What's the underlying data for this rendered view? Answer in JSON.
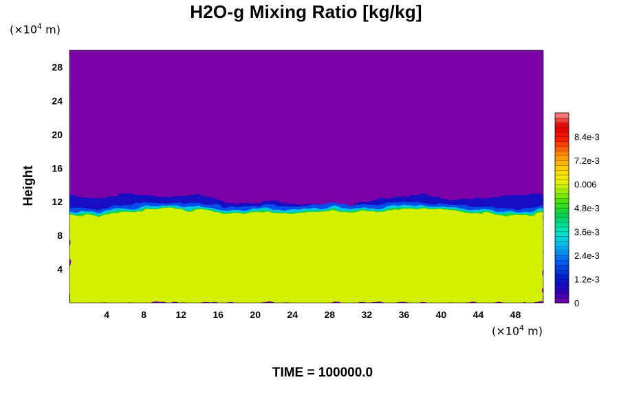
{
  "title": "H2O-g Mixing Ratio [kg/kg]",
  "y_unit": {
    "prefix": "(×10",
    "exp": "4",
    "suffix": " m)"
  },
  "x_unit": {
    "prefix": "(×10",
    "exp": "4",
    "suffix": " m)"
  },
  "time_label": "TIME = 100000.0",
  "chart_data": {
    "type": "heatmap",
    "title": "H2O-g Mixing Ratio [kg/kg]",
    "xlabel": "",
    "ylabel": "Height",
    "xlim": [
      0,
      51
    ],
    "ylim": [
      0,
      30
    ],
    "x_ticks": [
      4,
      8,
      12,
      16,
      20,
      24,
      28,
      32,
      36,
      40,
      44,
      48
    ],
    "y_ticks": [
      4,
      8,
      12,
      16,
      20,
      24,
      28
    ],
    "colorbar": {
      "min": 0,
      "max": 0.0096,
      "tick_values": [
        0,
        0.0012,
        0.0024,
        0.0036,
        0.0048,
        0.006,
        0.0072,
        0.0084
      ],
      "tick_labels": [
        "0",
        "1.2e-3",
        "2.4e-3",
        "3.6e-3",
        "4.8e-3",
        "0.006",
        "7.2e-3",
        "8.4e-3"
      ]
    },
    "field_description_values": {
      "upper_layer_value": 0,
      "lower_layer_value": 0.006,
      "moist_layer_top_height": [
        [
          0,
          10.5
        ],
        [
          3,
          10.3
        ],
        [
          6,
          10.8
        ],
        [
          10,
          11.2
        ],
        [
          14,
          11.0
        ],
        [
          18,
          10.6
        ],
        [
          22,
          10.8
        ],
        [
          24,
          10.6
        ],
        [
          28,
          11.0
        ],
        [
          32,
          10.8
        ],
        [
          36,
          11.2
        ],
        [
          40,
          11.0
        ],
        [
          44,
          10.6
        ],
        [
          48,
          10.4
        ],
        [
          51,
          10.6
        ]
      ],
      "dry_transition_top_height": [
        [
          0,
          12.8
        ],
        [
          3,
          12.3
        ],
        [
          6,
          13.0
        ],
        [
          10,
          12.6
        ],
        [
          14,
          12.8
        ],
        [
          18,
          11.8
        ],
        [
          22,
          12.0
        ],
        [
          26,
          11.7
        ],
        [
          30,
          11.6
        ],
        [
          34,
          12.4
        ],
        [
          38,
          12.8
        ],
        [
          42,
          12.2
        ],
        [
          46,
          12.6
        ],
        [
          51,
          13.0
        ]
      ]
    }
  }
}
